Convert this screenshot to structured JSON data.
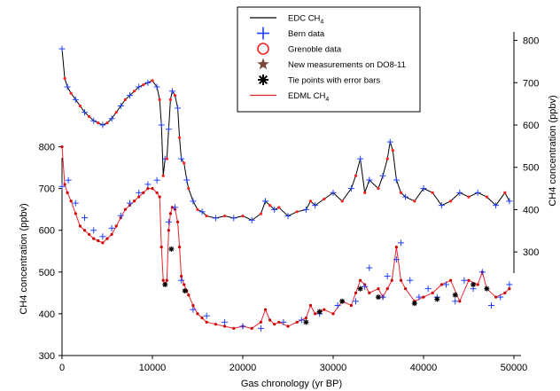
{
  "chart_data": {
    "type": "line",
    "title": "",
    "xlabel": "Gas chronology (yr BP)",
    "xlim": [
      0,
      50000
    ],
    "x_ticks": [
      0,
      10000,
      20000,
      30000,
      40000,
      50000
    ],
    "ylabel_left": "CH4 concentration (ppbv)",
    "ylim_left": [
      300,
      850
    ],
    "y_ticks_left": [
      300,
      400,
      500,
      600,
      700,
      800
    ],
    "ylabel_right": "CH4 concentration (ppbv)",
    "ylim_right": [
      250,
      820
    ],
    "y_ticks_right": [
      300,
      400,
      500,
      600,
      700,
      800
    ],
    "grid": false,
    "legend_position": "top-center",
    "colors": {
      "edc_line": "#000000",
      "bern": "#1f3fff",
      "grenoble": "#ff2020",
      "new_measurements": "#7a4a3c",
      "tie_points": "#000000",
      "edml_line": "#e8242e",
      "edml_marker": "#d00000"
    },
    "legend": [
      {
        "key": "edc",
        "text": "EDC CH",
        "sub": "4",
        "symbol": "line-black"
      },
      {
        "key": "bern",
        "text": "Bern data",
        "sub": "",
        "symbol": "plus-blue"
      },
      {
        "key": "grenoble",
        "text": "Grenoble data",
        "sub": "",
        "symbol": "circle-red"
      },
      {
        "key": "new",
        "text": "New measurements on DO8-11",
        "sub": "",
        "symbol": "star-brown"
      },
      {
        "key": "tie",
        "text": "Tie points with error bars",
        "sub": "",
        "symbol": "asterisk-black"
      },
      {
        "key": "edml",
        "text": "EDML CH",
        "sub": "4",
        "symbol": "line-red"
      }
    ],
    "series": [
      {
        "name": "EDC CH4",
        "axis": "right",
        "x": [
          0,
          300,
          600,
          1000,
          1500,
          2000,
          2500,
          3000,
          3500,
          4000,
          4500,
          5000,
          5500,
          6000,
          6500,
          7000,
          7500,
          8000,
          8500,
          9000,
          9500,
          10000,
          10500,
          10800,
          11000,
          11200,
          11400,
          11600,
          11800,
          12000,
          12200,
          12500,
          12800,
          13000,
          13200,
          13500,
          13800,
          14000,
          14500,
          15000,
          15500,
          16000,
          17000,
          18000,
          19000,
          20000,
          21000,
          22000,
          22500,
          23000,
          23500,
          24000,
          25000,
          26000,
          27000,
          27500,
          28000,
          29000,
          30000,
          31000,
          32000,
          32500,
          33000,
          33500,
          34000,
          35000,
          35500,
          36000,
          36300,
          36600,
          37000,
          37500,
          38000,
          39000,
          40000,
          41000,
          42000,
          43000,
          44000,
          45000,
          46000,
          47000,
          48000,
          49000,
          49500
        ],
        "y": [
          780,
          710,
          690,
          675,
          660,
          645,
          630,
          620,
          610,
          605,
          600,
          605,
          615,
          630,
          645,
          660,
          670,
          680,
          690,
          695,
          700,
          705,
          690,
          660,
          600,
          480,
          520,
          520,
          590,
          660,
          680,
          670,
          640,
          570,
          520,
          510,
          470,
          450,
          420,
          400,
          395,
          385,
          380,
          385,
          380,
          385,
          375,
          390,
          420,
          410,
          400,
          405,
          385,
          395,
          400,
          420,
          410,
          425,
          440,
          420,
          450,
          480,
          520,
          440,
          470,
          450,
          480,
          520,
          560,
          540,
          470,
          440,
          430,
          420,
          450,
          440,
          410,
          420,
          440,
          430,
          440,
          430,
          410,
          440,
          420
        ]
      },
      {
        "name": "EDML CH4",
        "axis": "left",
        "x": [
          0,
          300,
          600,
          1000,
          1500,
          2000,
          2500,
          3000,
          3500,
          4000,
          4500,
          5000,
          5500,
          6000,
          6500,
          7000,
          7500,
          8000,
          8500,
          9000,
          9500,
          10000,
          10500,
          10800,
          11000,
          11200,
          11400,
          11600,
          11800,
          12000,
          12200,
          12500,
          12800,
          13000,
          13200,
          13500,
          13800,
          14000,
          14500,
          15000,
          15500,
          16000,
          17000,
          18000,
          19000,
          20000,
          21000,
          22000,
          22500,
          23000,
          23500,
          24000,
          25000,
          26000,
          27000,
          27500,
          28000,
          29000,
          30000,
          31000,
          32000,
          32500,
          33000,
          33500,
          34000,
          35000,
          35500,
          36000,
          36500,
          37000,
          37500,
          38000,
          39000,
          40000,
          41000,
          42000,
          43000,
          44000,
          45000,
          46000,
          46500,
          47000,
          48000,
          49000,
          49500
        ],
        "y": [
          800,
          710,
          690,
          670,
          640,
          610,
          600,
          590,
          580,
          575,
          570,
          580,
          590,
          610,
          630,
          650,
          660,
          670,
          680,
          690,
          700,
          700,
          690,
          680,
          560,
          480,
          470,
          480,
          600,
          640,
          655,
          650,
          620,
          560,
          490,
          470,
          455,
          445,
          420,
          400,
          390,
          380,
          375,
          370,
          365,
          370,
          365,
          380,
          410,
          385,
          375,
          380,
          370,
          380,
          390,
          420,
          400,
          410,
          400,
          430,
          420,
          450,
          480,
          470,
          450,
          460,
          440,
          460,
          480,
          560,
          480,
          460,
          430,
          440,
          450,
          470,
          480,
          430,
          480,
          470,
          500,
          460,
          440,
          450,
          460
        ]
      }
    ],
    "markers": {
      "bern": {
        "x": [
          0,
          700,
          1500,
          2500,
          3500,
          4500,
          5500,
          6500,
          7500,
          8500,
          9500,
          10500,
          11800,
          12500,
          13200,
          14500,
          16000,
          18000,
          20000,
          22000,
          24500,
          26500,
          28500,
          30500,
          32500,
          33500,
          34000,
          35500,
          36000,
          37000,
          37500,
          38500,
          39500,
          40500,
          41500,
          42500,
          43500,
          44500,
          45500,
          46500,
          47500,
          48500,
          49500
        ],
        "y": [
          705,
          720,
          665,
          630,
          600,
          585,
          605,
          635,
          665,
          690,
          710,
          720,
          620,
          655,
          480,
          410,
          395,
          380,
          370,
          365,
          380,
          385,
          400,
          420,
          430,
          465,
          510,
          440,
          490,
          530,
          570,
          480,
          440,
          460,
          440,
          470,
          430,
          480,
          460,
          500,
          420,
          440,
          470
        ]
      },
      "tie_points": {
        "x": [
          11400,
          12100,
          13600,
          27000,
          28500,
          31000,
          33000,
          35000,
          39000,
          41500,
          43500,
          45500,
          47000
        ],
        "y": [
          470,
          555,
          455,
          380,
          405,
          430,
          460,
          440,
          425,
          435,
          445,
          470,
          460
        ]
      }
    }
  }
}
